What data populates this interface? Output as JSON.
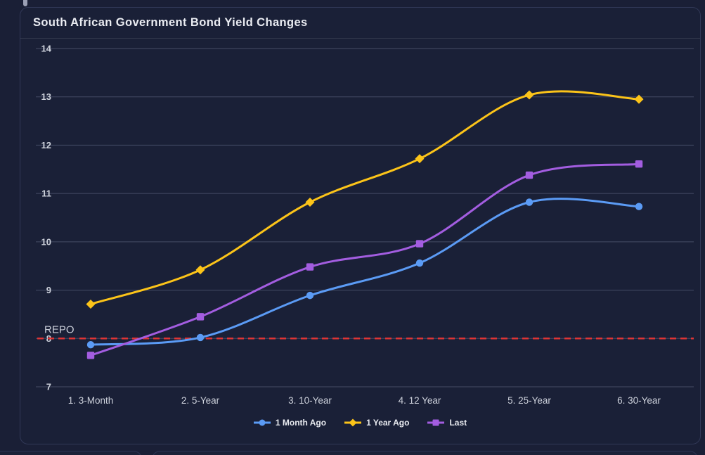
{
  "chart_data": {
    "type": "line",
    "title": "South African Government Bond Yield Changes",
    "categories": [
      "1. 3-Month",
      "2. 5-Year",
      "3. 10-Year",
      "4. 12 Year",
      "5. 25-Year",
      "6. 30-Year"
    ],
    "series": [
      {
        "name": "1 Month Ago",
        "color": "#5b9bf5",
        "marker": "circle",
        "values": [
          7.87,
          8.02,
          8.89,
          9.56,
          10.82,
          10.73
        ]
      },
      {
        "name": "1 Year Ago",
        "color": "#fcc419",
        "marker": "diamond",
        "values": [
          8.71,
          9.42,
          10.82,
          11.72,
          13.04,
          12.95
        ]
      },
      {
        "name": "Last",
        "color": "#a35de0",
        "marker": "square",
        "values": [
          7.65,
          8.45,
          9.48,
          9.96,
          11.38,
          11.61
        ]
      }
    ],
    "ylim": [
      7,
      14
    ],
    "yticks": [
      7,
      8,
      9,
      10,
      11,
      12,
      13,
      14
    ],
    "ref_line": {
      "value": 8,
      "label": "REPO",
      "color": "#df3434",
      "style": "dashed"
    },
    "grid": true,
    "legend_position": "bottom"
  },
  "colors": {
    "background": "#1a1f36",
    "card_background": "#1a2037",
    "card_border": "#313857",
    "gridline": "#454b66",
    "tick_text": "#ced2dc",
    "title_text": "#eaecf2",
    "ref_text": "#c9cdd8"
  }
}
